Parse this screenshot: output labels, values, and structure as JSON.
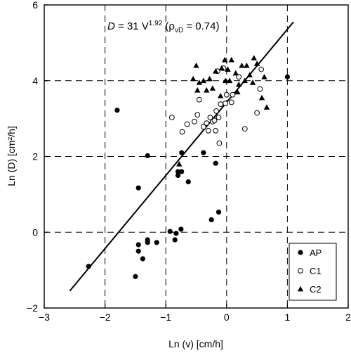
{
  "chart_data": {
    "type": "scatter",
    "xlabel": "Ln (v) [cm/h]",
    "ylabel": "Ln (D) [cm²/h]",
    "xlim": [
      -3,
      2
    ],
    "ylim": [
      -2,
      6
    ],
    "xticks": [
      "−3",
      "−2",
      "−1",
      "0",
      "1",
      "2"
    ],
    "yticks": [
      "−2",
      "0",
      "2",
      "4",
      "6"
    ],
    "grid": "dashed",
    "legend_position": "bottom-right",
    "annotation": {
      "D": "D",
      "eq": " = 31 V",
      "exp": "1.92",
      "paren_open": " (ρ",
      "sub": "vD",
      "tail": " = 0.74)"
    },
    "fit_line": {
      "x": [
        -2.58,
        1.1
      ],
      "y": [
        -1.55,
        5.55
      ]
    },
    "series": [
      {
        "name": "AP",
        "marker": "filled-circle",
        "points": [
          [
            -2.27,
            -0.9
          ],
          [
            -1.8,
            3.22
          ],
          [
            -1.3,
            2.02
          ],
          [
            -1.45,
            1.17
          ],
          [
            -1.5,
            -1.17
          ],
          [
            -1.45,
            -0.5
          ],
          [
            -1.45,
            -0.33
          ],
          [
            -1.38,
            -0.7
          ],
          [
            -1.3,
            -0.2
          ],
          [
            -1.3,
            -0.27
          ],
          [
            -1.15,
            -0.27
          ],
          [
            -0.93,
            0.02
          ],
          [
            -0.85,
            -0.2
          ],
          [
            -0.83,
            -0.03
          ],
          [
            -0.75,
            0.08
          ],
          [
            -0.8,
            1.5
          ],
          [
            -0.8,
            1.6
          ],
          [
            -0.74,
            1.6
          ],
          [
            -0.74,
            2.1
          ],
          [
            -0.63,
            1.33
          ],
          [
            -0.38,
            2.1
          ],
          [
            -0.25,
            0.33
          ],
          [
            -0.18,
            1.82
          ],
          [
            -0.13,
            0.53
          ],
          [
            1.0,
            4.1
          ]
        ]
      },
      {
        "name": "C1",
        "marker": "open-circle",
        "points": [
          [
            -0.9,
            3.03
          ],
          [
            -0.73,
            2.65
          ],
          [
            -0.65,
            2.85
          ],
          [
            -0.53,
            2.92
          ],
          [
            -0.48,
            3.1
          ],
          [
            -0.45,
            3.5
          ],
          [
            -0.38,
            2.78
          ],
          [
            -0.33,
            2.88
          ],
          [
            -0.3,
            2.68
          ],
          [
            -0.27,
            3.03
          ],
          [
            -0.23,
            2.92
          ],
          [
            -0.2,
            2.95
          ],
          [
            -0.18,
            2.68
          ],
          [
            -0.17,
            3.2
          ],
          [
            -0.13,
            3.03
          ],
          [
            -0.12,
            2.35
          ],
          [
            -0.1,
            3.38
          ],
          [
            -0.15,
            4.25
          ],
          [
            -0.05,
            4.33
          ],
          [
            0.0,
            3.63
          ],
          [
            0.1,
            3.63
          ],
          [
            0.2,
            4.1
          ],
          [
            0.3,
            2.73
          ],
          [
            0.5,
            3.15
          ],
          [
            0.55,
            3.78
          ],
          [
            0.57,
            4.3
          ],
          [
            0.08,
            3.43
          ],
          [
            -0.02,
            3.4
          ]
        ]
      },
      {
        "name": "C2",
        "marker": "filled-triangle",
        "points": [
          [
            -0.78,
            1.8
          ],
          [
            -0.5,
            4.4
          ],
          [
            -0.45,
            3.95
          ],
          [
            -0.48,
            3.75
          ],
          [
            -0.38,
            4.0
          ],
          [
            -0.33,
            3.75
          ],
          [
            -0.28,
            4.05
          ],
          [
            -0.23,
            3.8
          ],
          [
            -0.18,
            4.25
          ],
          [
            -0.08,
            4.33
          ],
          [
            -0.03,
            4.55
          ],
          [
            0.02,
            4.3
          ],
          [
            0.08,
            4.55
          ],
          [
            0.05,
            4.0
          ],
          [
            0.15,
            4.2
          ],
          [
            0.2,
            3.9
          ],
          [
            0.25,
            4.4
          ],
          [
            0.33,
            4.4
          ],
          [
            0.38,
            4.15
          ],
          [
            0.43,
            3.95
          ],
          [
            0.45,
            4.6
          ],
          [
            0.5,
            4.45
          ],
          [
            0.58,
            3.55
          ],
          [
            0.62,
            4.1
          ],
          [
            0.66,
            3.3
          ],
          [
            0.3,
            4.0
          ],
          [
            -0.1,
            3.6
          ],
          [
            -0.55,
            4.05
          ],
          [
            -0.02,
            4.0
          ],
          [
            0.18,
            3.7
          ]
        ]
      }
    ]
  }
}
